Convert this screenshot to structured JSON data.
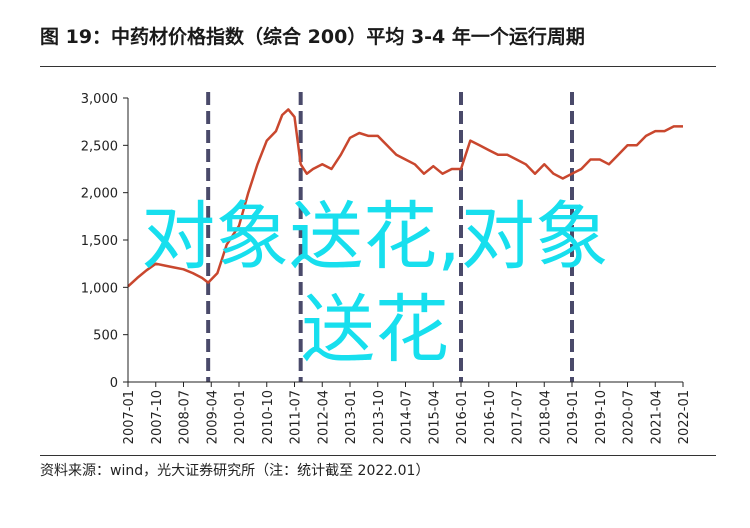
{
  "header": {
    "title": "图 19：中药材价格指数（综合 200）平均 3-4 年一个运行周期"
  },
  "footer": {
    "source": "资料来源：wind，光大证券研究所（注：统计截至 2022.01）"
  },
  "watermark": {
    "line1": "对象送花,对象",
    "line2": "送花"
  },
  "colors": {
    "series": "#c9472e",
    "cycle_markers": "#4a4a6a",
    "watermark": "#17dfee",
    "axis": "#222222"
  },
  "chart_data": {
    "type": "line",
    "title": "",
    "xlabel": "",
    "ylabel": "",
    "ylim": [
      0,
      3000
    ],
    "yticks": [
      0,
      500,
      1000,
      1500,
      2000,
      2500,
      3000
    ],
    "ytick_labels": [
      "0",
      "500",
      "1,000",
      "1,500",
      "2,000",
      "2,500",
      "3,000"
    ],
    "xlim": [
      "2007-01",
      "2022-01"
    ],
    "xtick_labels": [
      "2007-01",
      "2007-10",
      "2008-07",
      "2009-04",
      "2010-01",
      "2010-10",
      "2011-07",
      "2012-04",
      "2013-01",
      "2013-10",
      "2014-07",
      "2015-04",
      "2016-01",
      "2016-10",
      "2017-07",
      "2018-04",
      "2019-01",
      "2019-10",
      "2020-07",
      "2021-04",
      "2022-01"
    ],
    "grid": false,
    "cycle_markers": [
      "2009-03",
      "2011-09",
      "2016-01",
      "2019-01"
    ],
    "series": [
      {
        "x": [
          "2007-01",
          "2007-04",
          "2007-07",
          "2007-10",
          "2008-01",
          "2008-04",
          "2008-07",
          "2008-10",
          "2009-01",
          "2009-03",
          "2009-06",
          "2009-09",
          "2010-01",
          "2010-04",
          "2010-07",
          "2010-10",
          "2011-01",
          "2011-03",
          "2011-05",
          "2011-07",
          "2011-09",
          "2011-11",
          "2012-01",
          "2012-04",
          "2012-07",
          "2012-10",
          "2013-01",
          "2013-04",
          "2013-07",
          "2013-10",
          "2014-01",
          "2014-04",
          "2014-07",
          "2014-10",
          "2015-01",
          "2015-04",
          "2015-07",
          "2015-10",
          "2016-01",
          "2016-04",
          "2016-07",
          "2016-10",
          "2017-01",
          "2017-04",
          "2017-07",
          "2017-10",
          "2018-01",
          "2018-04",
          "2018-07",
          "2018-10",
          "2019-01",
          "2019-04",
          "2019-07",
          "2019-10",
          "2020-01",
          "2020-04",
          "2020-07",
          "2020-10",
          "2021-01",
          "2021-04",
          "2021-07",
          "2021-10",
          "2022-01"
        ],
        "values": [
          1010,
          1100,
          1180,
          1250,
          1230,
          1210,
          1190,
          1150,
          1100,
          1050,
          1150,
          1450,
          1650,
          2000,
          2300,
          2550,
          2650,
          2820,
          2880,
          2800,
          2300,
          2200,
          2250,
          2300,
          2250,
          2400,
          2580,
          2630,
          2600,
          2600,
          2500,
          2400,
          2350,
          2300,
          2200,
          2280,
          2200,
          2250,
          2250,
          2550,
          2500,
          2450,
          2400,
          2400,
          2350,
          2300,
          2200,
          2300,
          2200,
          2150,
          2200,
          2250,
          2350,
          2350,
          2300,
          2400,
          2500,
          2500,
          2600,
          2650,
          2650,
          2700,
          2700
        ]
      }
    ]
  }
}
